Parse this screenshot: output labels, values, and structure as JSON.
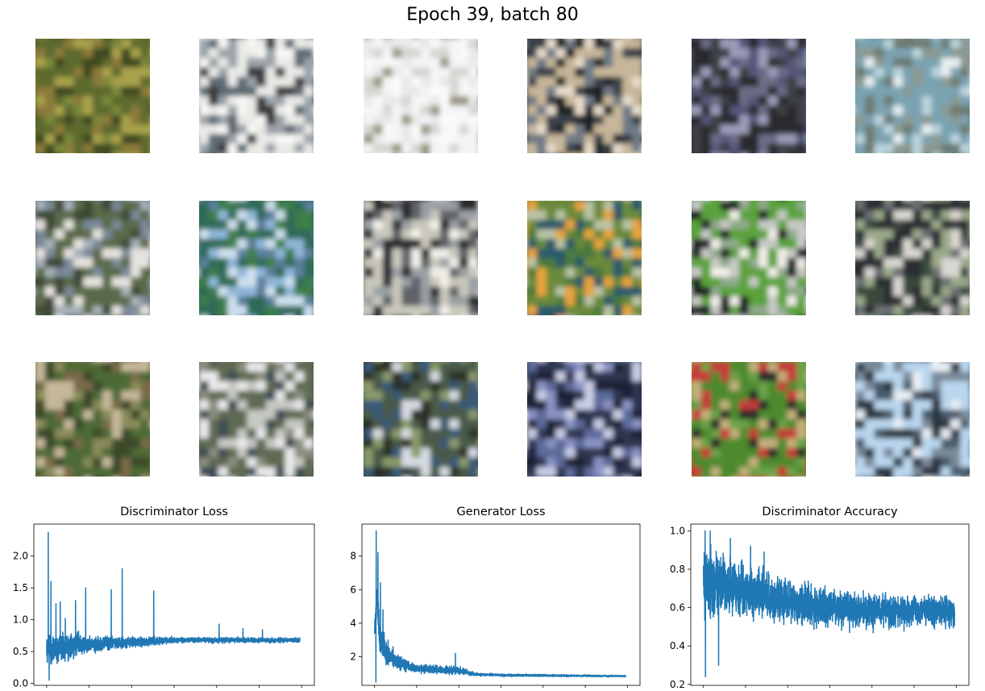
{
  "figure": {
    "suptitle": "Epoch 39, batch 80"
  },
  "samples": {
    "rows": 3,
    "cols": 6,
    "palettes": [
      [
        "#5d6a2f",
        "#7a8a3a",
        "#3f4a22",
        "#a9a24b",
        "#8c7a3a"
      ],
      [
        "#e9e9e6",
        "#3a3b3d",
        "#9aa3a8",
        "#f7f7f5",
        "#5e6a72"
      ],
      [
        "#f4f5f6",
        "#fafafa",
        "#d6d7d2",
        "#9b9a86",
        "#e6e8ea"
      ],
      [
        "#c7b69a",
        "#1f2024",
        "#6e7a86",
        "#e8dccb",
        "#3a4048"
      ],
      [
        "#2c2b2d",
        "#6a6d86",
        "#9a9cb8",
        "#3e3f44",
        "#55577a"
      ],
      [
        "#7aa3b1",
        "#e6eef0",
        "#6d7b73",
        "#8b9991",
        "#b9d3dc"
      ],
      [
        "#5a6a4a",
        "#e6e3df",
        "#7b8a9a",
        "#3c4a34",
        "#a7b0b8"
      ],
      [
        "#2e6a58",
        "#8fb6d8",
        "#3e7e4a",
        "#5b7f9c",
        "#cde0ee"
      ],
      [
        "#c9c7bc",
        "#f1efe8",
        "#5e6268",
        "#2b2b2d",
        "#9aa0a4"
      ],
      [
        "#6a8a3a",
        "#4a7a3e",
        "#e9a43a",
        "#2c5a6a",
        "#b9c4a4"
      ],
      [
        "#5aa23a",
        "#f1eee8",
        "#c7c9c4",
        "#1e2226",
        "#8fa98a"
      ],
      [
        "#2a2d33",
        "#d8d6d0",
        "#6b6f73",
        "#9aa88a",
        "#3a4a3c"
      ],
      [
        "#4e6a36",
        "#8a8c5a",
        "#3a4a2c",
        "#c4b898",
        "#7a6a4a"
      ],
      [
        "#5f6a52",
        "#c6c8c2",
        "#3e4b55",
        "#8a8e7e",
        "#e8e9ea"
      ],
      [
        "#4a5a4a",
        "#d6dbe2",
        "#3b5a78",
        "#8a9a6a",
        "#2a3028"
      ],
      [
        "#2d3550",
        "#8a93c4",
        "#5b6a9a",
        "#c9cde6",
        "#1e2436"
      ],
      [
        "#4d8a2f",
        "#2a2c2a",
        "#c4b07a",
        "#c43a3a",
        "#6aa24a"
      ],
      [
        "#b9d6ee",
        "#4a5a6a",
        "#e8eef4",
        "#7a8a9a",
        "#2a3440"
      ]
    ]
  },
  "chart_data": [
    {
      "type": "line",
      "title": "Discriminator Loss",
      "xlabel": "",
      "ylabel": "",
      "xlim": [
        -750,
        15750
      ],
      "ylim": [
        -0.03,
        2.5
      ],
      "xticks": [
        0,
        2500,
        5000,
        7500,
        10000,
        12500,
        15000
      ],
      "yticks": [
        0.0,
        0.5,
        1.0,
        1.5,
        2.0
      ],
      "ytick_labels": [
        "0.0",
        "0.5",
        "1.0",
        "1.5",
        "2.0"
      ],
      "x_range": [
        0,
        14900
      ],
      "color": "#1f77b4",
      "trend": [
        [
          0,
          0.55
        ],
        [
          500,
          0.55
        ],
        [
          2000,
          0.6
        ],
        [
          5000,
          0.65
        ],
        [
          7500,
          0.68
        ],
        [
          15000,
          0.68
        ]
      ],
      "spread": [
        [
          0,
          0.35
        ],
        [
          1000,
          0.3
        ],
        [
          2500,
          0.18
        ],
        [
          5000,
          0.12
        ],
        [
          7500,
          0.06
        ],
        [
          15000,
          0.05
        ]
      ],
      "spikes": [
        [
          100,
          2.37
        ],
        [
          150,
          0.05
        ],
        [
          250,
          1.6
        ],
        [
          550,
          1.25
        ],
        [
          800,
          1.28
        ],
        [
          1100,
          1.02
        ],
        [
          1700,
          1.3
        ],
        [
          2300,
          1.5
        ],
        [
          3800,
          1.47
        ],
        [
          4450,
          1.8
        ],
        [
          6300,
          1.45
        ],
        [
          10150,
          0.93
        ],
        [
          11550,
          0.86
        ],
        [
          12700,
          0.84
        ]
      ]
    },
    {
      "type": "line",
      "title": "Generator Loss",
      "xlabel": "",
      "ylabel": "",
      "xlim": [
        -750,
        15750
      ],
      "ylim": [
        0.3,
        9.9
      ],
      "xticks": [
        0,
        2500,
        5000,
        7500,
        10000,
        12500,
        15000
      ],
      "yticks": [
        2,
        4,
        6,
        8
      ],
      "ytick_labels": [
        "2",
        "4",
        "6",
        "8"
      ],
      "x_range": [
        0,
        14900
      ],
      "color": "#1f77b4",
      "trend": [
        [
          0,
          3.2
        ],
        [
          150,
          6.0
        ],
        [
          300,
          3.2
        ],
        [
          700,
          2.1
        ],
        [
          1500,
          1.6
        ],
        [
          2500,
          1.3
        ],
        [
          4000,
          1.2
        ],
        [
          5000,
          1.2
        ],
        [
          6000,
          0.95
        ],
        [
          8000,
          0.9
        ],
        [
          15000,
          0.85
        ]
      ],
      "spread": [
        [
          0,
          1.2
        ],
        [
          300,
          1.4
        ],
        [
          1000,
          0.6
        ],
        [
          2500,
          0.35
        ],
        [
          5000,
          0.35
        ],
        [
          6000,
          0.12
        ],
        [
          15000,
          0.06
        ]
      ],
      "spikes": [
        [
          100,
          9.5
        ],
        [
          80,
          0.5
        ],
        [
          200,
          8.2
        ],
        [
          350,
          6.4
        ],
        [
          500,
          4.8
        ],
        [
          800,
          3.0
        ],
        [
          1100,
          2.6
        ],
        [
          4800,
          2.2
        ]
      ]
    },
    {
      "type": "line",
      "title": "Discriminator Accuracy",
      "xlabel": "",
      "ylabel": "",
      "xlim": [
        -750,
        15750
      ],
      "ylim": [
        0.195,
        1.035
      ],
      "xticks": [
        0,
        2500,
        5000,
        7500,
        10000,
        12500,
        15000
      ],
      "yticks": [
        0.2,
        0.4,
        0.6,
        0.8,
        1.0
      ],
      "ytick_labels": [
        "0.2",
        "0.4",
        "0.6",
        "0.8",
        "1.0"
      ],
      "x_range": [
        0,
        14900
      ],
      "color": "#1f77b4",
      "trend": [
        [
          0,
          0.72
        ],
        [
          1000,
          0.72
        ],
        [
          2500,
          0.68
        ],
        [
          5000,
          0.64
        ],
        [
          7500,
          0.6
        ],
        [
          10000,
          0.58
        ],
        [
          15000,
          0.58
        ]
      ],
      "spread": [
        [
          0,
          0.24
        ],
        [
          1000,
          0.22
        ],
        [
          2500,
          0.18
        ],
        [
          5000,
          0.16
        ],
        [
          7500,
          0.13
        ],
        [
          15000,
          0.1
        ]
      ],
      "spikes": [
        [
          100,
          1.0
        ],
        [
          120,
          0.24
        ],
        [
          400,
          1.0
        ],
        [
          900,
          0.3
        ],
        [
          1600,
          0.96
        ],
        [
          2800,
          0.92
        ],
        [
          3600,
          0.89
        ]
      ]
    }
  ]
}
